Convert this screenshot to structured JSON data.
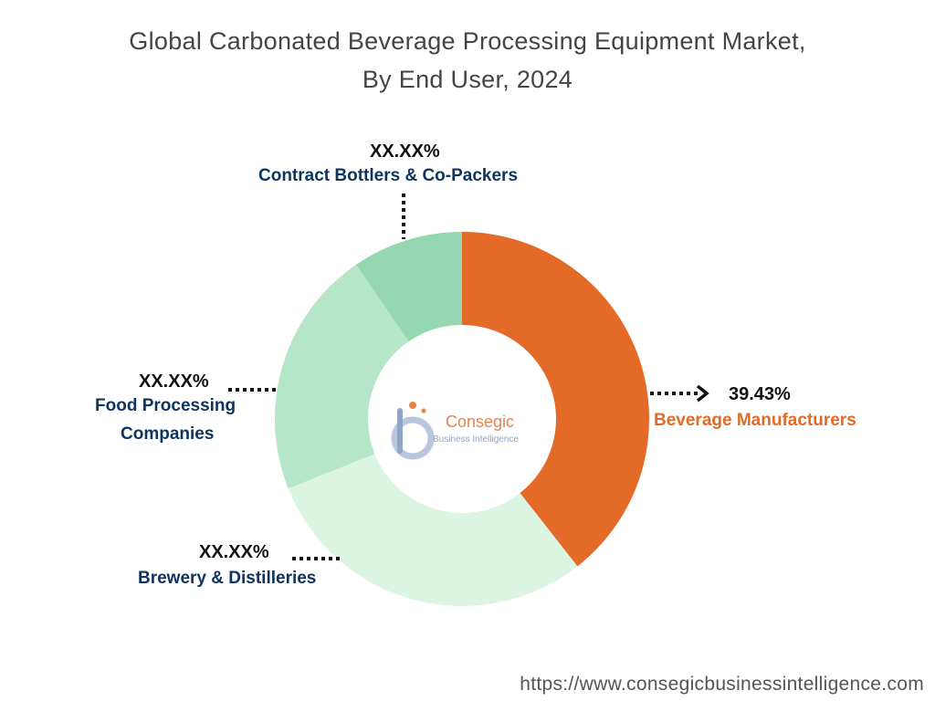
{
  "chart_data": {
    "type": "pie",
    "title_line1": "Global Carbonated Beverage Processing Equipment Market,",
    "title_line2": "By End User, 2024",
    "donut": true,
    "slices": [
      {
        "label": "Beverage Manufacturers",
        "value": 39.43,
        "value_label": "39.43%",
        "color": "#e46a27"
      },
      {
        "label": "Brewery & Distilleries",
        "value": 29.5,
        "value_label": "XX.XX%",
        "color": "#dcf4e2"
      },
      {
        "label": "Food Processing Companies",
        "value": 21.5,
        "value_label": "XX.XX%",
        "color": "#b5e6c7"
      },
      {
        "label": "Contract Bottlers & Co-Packers",
        "value": 9.57,
        "value_label": "XX.XX%",
        "color": "#95d7b1"
      }
    ]
  },
  "labels": {
    "food_line1": "Food Processing",
    "food_line2": "Companies"
  },
  "logo": {
    "name": "Consegic",
    "sub": "Business Intelligence"
  },
  "footer": {
    "url": "https://www.consegicbusinessintelligence.com"
  }
}
